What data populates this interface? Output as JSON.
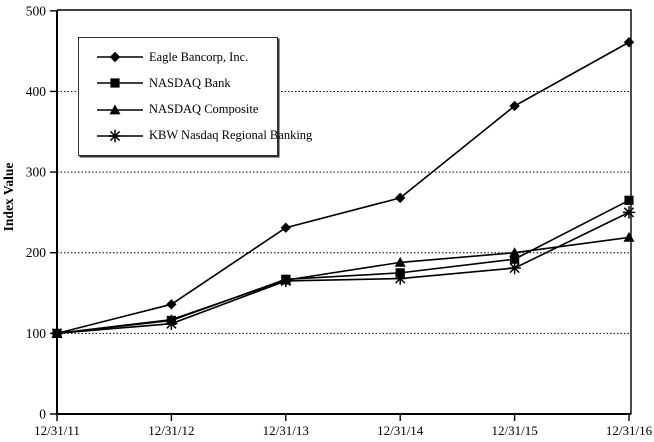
{
  "chart_data": {
    "type": "line",
    "title": "",
    "xlabel": "",
    "ylabel": "Index Value",
    "ylim": [
      0,
      500
    ],
    "yticks": [
      0,
      100,
      200,
      300,
      400,
      500
    ],
    "grid_yticks_dotted": [
      100,
      200,
      300,
      400
    ],
    "grid": "horizontal-dotted",
    "legend_position": "top-left-inside",
    "background_color": "#ffffff",
    "line_color": "#000000",
    "categories": [
      "12/31/11",
      "12/31/12",
      "12/31/13",
      "12/31/14",
      "12/31/15",
      "12/31/16"
    ],
    "series": [
      {
        "name": "Eagle Bancorp, Inc.",
        "marker": "diamond",
        "values": [
          100,
          136,
          231,
          268,
          382,
          461
        ]
      },
      {
        "name": "NASDAQ Bank",
        "marker": "square",
        "values": [
          100,
          116,
          167,
          175,
          192,
          265
        ]
      },
      {
        "name": "NASDAQ Composite",
        "marker": "triangle",
        "values": [
          100,
          117,
          166,
          188,
          200,
          219
        ]
      },
      {
        "name": "KBW Nasdaq Regional Banking",
        "marker": "star",
        "values": [
          100,
          112,
          165,
          168,
          181,
          250
        ]
      }
    ]
  }
}
